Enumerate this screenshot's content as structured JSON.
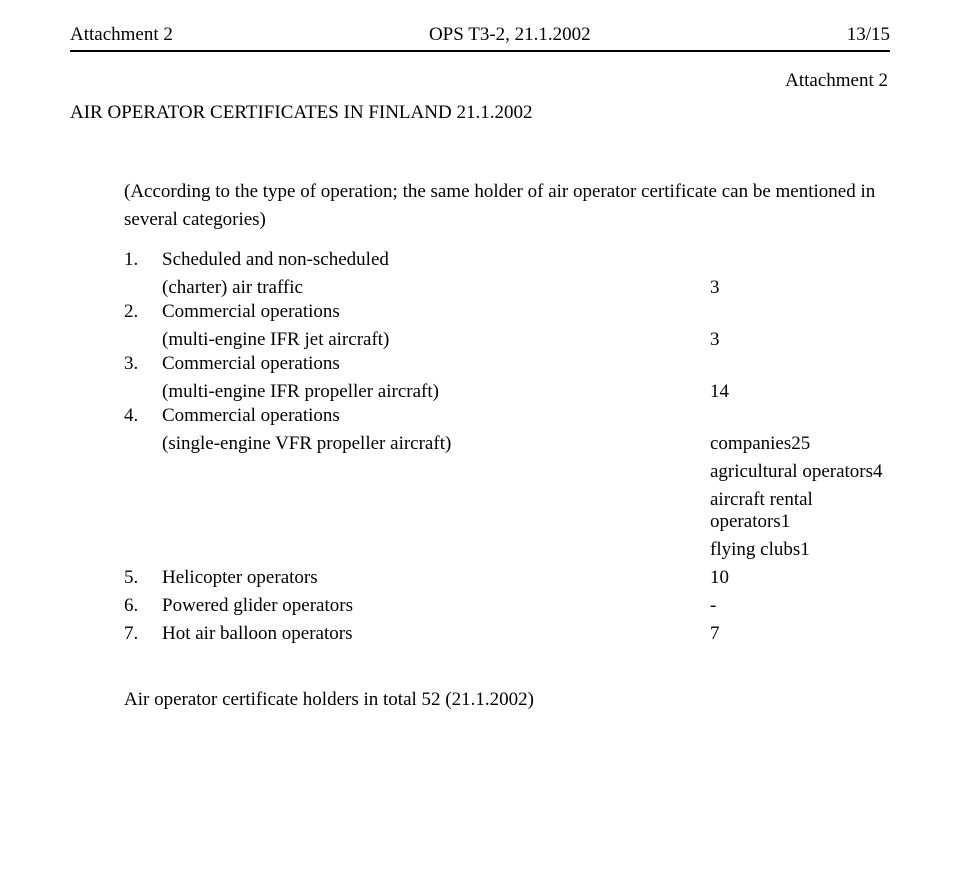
{
  "header": {
    "left": "Attachment 2",
    "center": "OPS T3-2, 21.1.2002",
    "right": "13/15"
  },
  "attachment_label": "Attachment 2",
  "title": "AIR OPERATOR CERTIFICATES IN FINLAND 21.1.2002",
  "intro": "(According to the type of operation; the same holder of air operator certificate can be mentioned in several categories)",
  "items": [
    {
      "num": "1.",
      "label": "Scheduled and non-scheduled",
      "sub": "(charter) air traffic",
      "value": "3"
    },
    {
      "num": "2.",
      "label": "Commercial operations",
      "sub": "(multi-engine IFR jet aircraft)",
      "value": "3"
    },
    {
      "num": "3.",
      "label": "Commercial operations",
      "sub": "(multi-engine IFR propeller aircraft)",
      "value": "14"
    },
    {
      "num": "4.",
      "label": "Commercial operations",
      "sub": "(single-engine VFR propeller aircraft)",
      "values": [
        "companies25",
        "agricultural operators4",
        "aircraft rental operators1",
        "flying clubs1"
      ]
    },
    {
      "num": "5.",
      "label": "Helicopter operators",
      "value": "10"
    },
    {
      "num": "6.",
      "label": "Powered glider operators",
      "value": "-"
    },
    {
      "num": "7.",
      "label": "Hot air balloon operators",
      "value": "7"
    }
  ],
  "total": "Air operator certificate holders in total  52  (21.1.2002)"
}
